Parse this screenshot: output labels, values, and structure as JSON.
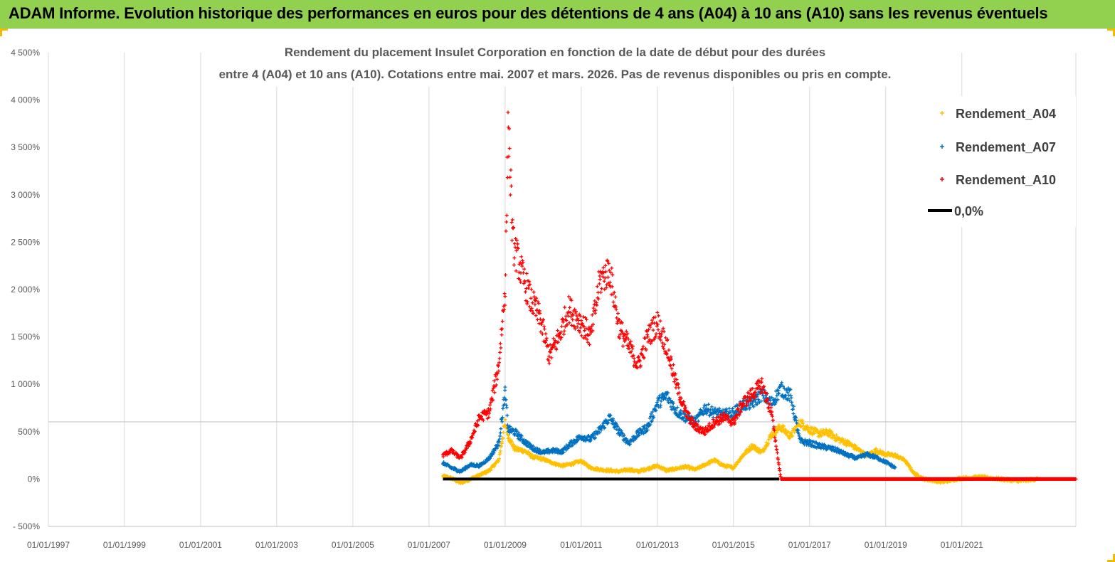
{
  "banner": {
    "title": "ADAM Informe. Evolution historique des performances en euros pour des détentions de 4 ans (A04) à 10 ans (A10) sans les revenus éventuels"
  },
  "colors": {
    "banner_bg": "#92d050",
    "A04": "#ffc000",
    "A07": "#0070c0",
    "A10": "#ff0000",
    "zero_line": "#000000",
    "corner_accent": "#f3b800"
  },
  "chart_data": {
    "type": "scatter",
    "title_lines": [
      "Rendement du placement Insulet Corporation en fonction de la date de début pour des durées",
      "entre 4 (A04) et 10 ans (A10).  Cotations entre mai. 2007 et mars. 2026.  Pas de revenus disponibles ou pris  en compte."
    ],
    "x_axis": {
      "type": "date",
      "range": [
        "1997-01-01",
        "2023-12-31"
      ],
      "tick_labels": [
        "01/01/1997",
        "01/01/1999",
        "01/01/2001",
        "01/01/2003",
        "01/01/2005",
        "01/01/2007",
        "01/01/2009",
        "01/01/2011",
        "01/01/2013",
        "01/01/2015",
        "01/01/2017",
        "01/01/2019",
        "01/01/2021"
      ]
    },
    "y_axis": {
      "unit": "%",
      "range": [
        -500,
        4500
      ],
      "ticks": [
        -500,
        0,
        500,
        1000,
        1500,
        2000,
        2500,
        3000,
        3500,
        4000,
        4500
      ],
      "tick_labels": [
        "- 500%",
        "0%",
        "500%",
        "1 000%",
        "1 500%",
        "2 000%",
        "2 500%",
        "3 000%",
        "3 500%",
        "4 000%",
        "4 500%"
      ]
    },
    "grid": "vertical",
    "legend_position": "top-right",
    "series": [
      {
        "name": "Rendement_A04",
        "color": "#ffc000",
        "marker": "+",
        "points": [
          [
            "2007-05-15",
            30
          ],
          [
            "2007-08-01",
            10
          ],
          [
            "2007-11-01",
            -40
          ],
          [
            "2008-02-01",
            0
          ],
          [
            "2008-05-01",
            40
          ],
          [
            "2008-08-01",
            90
          ],
          [
            "2008-11-01",
            200
          ],
          [
            "2009-01-01",
            600
          ],
          [
            "2009-02-01",
            450
          ],
          [
            "2009-04-01",
            320
          ],
          [
            "2009-07-01",
            300
          ],
          [
            "2009-10-01",
            230
          ],
          [
            "2010-01-01",
            210
          ],
          [
            "2010-04-01",
            170
          ],
          [
            "2010-07-01",
            140
          ],
          [
            "2010-10-01",
            160
          ],
          [
            "2011-01-01",
            190
          ],
          [
            "2011-04-01",
            120
          ],
          [
            "2011-07-01",
            100
          ],
          [
            "2011-10-01",
            90
          ],
          [
            "2012-01-01",
            80
          ],
          [
            "2012-04-01",
            100
          ],
          [
            "2012-07-01",
            80
          ],
          [
            "2012-10-01",
            110
          ],
          [
            "2013-01-01",
            140
          ],
          [
            "2013-04-01",
            90
          ],
          [
            "2013-07-01",
            110
          ],
          [
            "2013-10-01",
            130
          ],
          [
            "2014-01-01",
            100
          ],
          [
            "2014-04-01",
            150
          ],
          [
            "2014-07-01",
            200
          ],
          [
            "2014-10-01",
            140
          ],
          [
            "2015-01-01",
            120
          ],
          [
            "2015-04-01",
            250
          ],
          [
            "2015-07-01",
            350
          ],
          [
            "2015-10-01",
            280
          ],
          [
            "2016-01-01",
            470
          ],
          [
            "2016-04-01",
            550
          ],
          [
            "2016-07-01",
            450
          ],
          [
            "2016-10-01",
            600
          ],
          [
            "2017-01-01",
            520
          ],
          [
            "2017-04-01",
            480
          ],
          [
            "2017-07-01",
            490
          ],
          [
            "2017-10-01",
            420
          ],
          [
            "2018-01-01",
            380
          ],
          [
            "2018-04-01",
            320
          ],
          [
            "2018-07-01",
            250
          ],
          [
            "2018-10-01",
            300
          ],
          [
            "2019-01-01",
            260
          ],
          [
            "2019-04-01",
            250
          ],
          [
            "2019-07-01",
            200
          ],
          [
            "2019-10-01",
            60
          ],
          [
            "2020-01-01",
            0
          ],
          [
            "2020-07-01",
            -30
          ],
          [
            "2021-01-01",
            10
          ],
          [
            "2021-07-01",
            20
          ],
          [
            "2022-01-01",
            0
          ],
          [
            "2022-07-01",
            -20
          ],
          [
            "2023-01-01",
            0
          ]
        ]
      },
      {
        "name": "Rendement_A07",
        "color": "#0070c0",
        "marker": "+",
        "points": [
          [
            "2007-05-15",
            170
          ],
          [
            "2007-08-01",
            120
          ],
          [
            "2007-11-01",
            80
          ],
          [
            "2008-02-01",
            150
          ],
          [
            "2008-05-01",
            140
          ],
          [
            "2008-08-01",
            220
          ],
          [
            "2008-11-01",
            380
          ],
          [
            "2009-01-01",
            900
          ],
          [
            "2009-02-01",
            520
          ],
          [
            "2009-04-01",
            500
          ],
          [
            "2009-07-01",
            400
          ],
          [
            "2009-10-01",
            320
          ],
          [
            "2010-01-01",
            280
          ],
          [
            "2010-04-01",
            300
          ],
          [
            "2010-07-01",
            290
          ],
          [
            "2010-10-01",
            380
          ],
          [
            "2011-01-01",
            450
          ],
          [
            "2011-04-01",
            420
          ],
          [
            "2011-07-01",
            520
          ],
          [
            "2011-10-01",
            650
          ],
          [
            "2012-01-01",
            500
          ],
          [
            "2012-04-01",
            380
          ],
          [
            "2012-07-01",
            480
          ],
          [
            "2012-10-01",
            550
          ],
          [
            "2013-01-01",
            800
          ],
          [
            "2013-04-01",
            880
          ],
          [
            "2013-07-01",
            720
          ],
          [
            "2013-10-01",
            650
          ],
          [
            "2014-01-01",
            600
          ],
          [
            "2014-04-01",
            750
          ],
          [
            "2014-07-01",
            700
          ],
          [
            "2014-10-01",
            680
          ],
          [
            "2015-01-01",
            700
          ],
          [
            "2015-04-01",
            780
          ],
          [
            "2015-07-01",
            800
          ],
          [
            "2015-10-01",
            900
          ],
          [
            "2016-01-01",
            800
          ],
          [
            "2016-04-01",
            950
          ],
          [
            "2016-07-01",
            880
          ],
          [
            "2016-10-01",
            400
          ],
          [
            "2017-01-01",
            380
          ],
          [
            "2017-04-01",
            350
          ],
          [
            "2017-07-01",
            330
          ],
          [
            "2017-10-01",
            300
          ],
          [
            "2018-01-01",
            250
          ],
          [
            "2018-04-01",
            220
          ],
          [
            "2018-07-01",
            260
          ],
          [
            "2018-10-01",
            230
          ],
          [
            "2019-01-01",
            180
          ],
          [
            "2019-04-01",
            120
          ]
        ]
      },
      {
        "name": "Rendement_A10",
        "color": "#ff0000",
        "marker": "+",
        "points": [
          [
            "2007-05-15",
            250
          ],
          [
            "2007-08-01",
            300
          ],
          [
            "2007-11-01",
            220
          ],
          [
            "2008-02-01",
            400
          ],
          [
            "2008-05-01",
            650
          ],
          [
            "2008-08-01",
            700
          ],
          [
            "2008-11-01",
            1200
          ],
          [
            "2009-01-01",
            2000
          ],
          [
            "2009-02-01",
            3800
          ],
          [
            "2009-03-15",
            2500
          ],
          [
            "2009-06-01",
            2200
          ],
          [
            "2009-09-01",
            1900
          ],
          [
            "2009-12-01",
            1700
          ],
          [
            "2010-03-01",
            1300
          ],
          [
            "2010-06-01",
            1500
          ],
          [
            "2010-09-01",
            1800
          ],
          [
            "2011-01-01",
            1650
          ],
          [
            "2011-04-01",
            1500
          ],
          [
            "2011-07-01",
            2100
          ],
          [
            "2011-10-01",
            2200
          ],
          [
            "2012-01-01",
            1600
          ],
          [
            "2012-04-01",
            1400
          ],
          [
            "2012-07-01",
            1200
          ],
          [
            "2012-10-01",
            1500
          ],
          [
            "2013-01-01",
            1650
          ],
          [
            "2013-04-01",
            1400
          ],
          [
            "2013-07-01",
            1000
          ],
          [
            "2013-10-01",
            700
          ],
          [
            "2014-01-01",
            550
          ],
          [
            "2014-04-01",
            500
          ],
          [
            "2014-07-01",
            600
          ],
          [
            "2014-10-01",
            650
          ],
          [
            "2015-01-01",
            600
          ],
          [
            "2015-04-01",
            800
          ],
          [
            "2015-07-01",
            900
          ],
          [
            "2015-10-01",
            1000
          ],
          [
            "2016-01-01",
            700
          ],
          [
            "2016-04-01",
            0
          ],
          [
            "2017-01-01",
            0
          ],
          [
            "2018-01-01",
            0
          ],
          [
            "2019-01-01",
            0
          ],
          [
            "2020-01-01",
            0
          ],
          [
            "2021-01-01",
            0
          ],
          [
            "2022-01-01",
            0
          ],
          [
            "2023-01-01",
            0
          ],
          [
            "2023-12-31",
            0
          ]
        ]
      },
      {
        "name": "0,0%",
        "color": "#000000",
        "marker": "line",
        "points": [
          [
            "2007-05-15",
            0
          ],
          [
            "2016-03-15",
            0
          ]
        ]
      }
    ]
  }
}
